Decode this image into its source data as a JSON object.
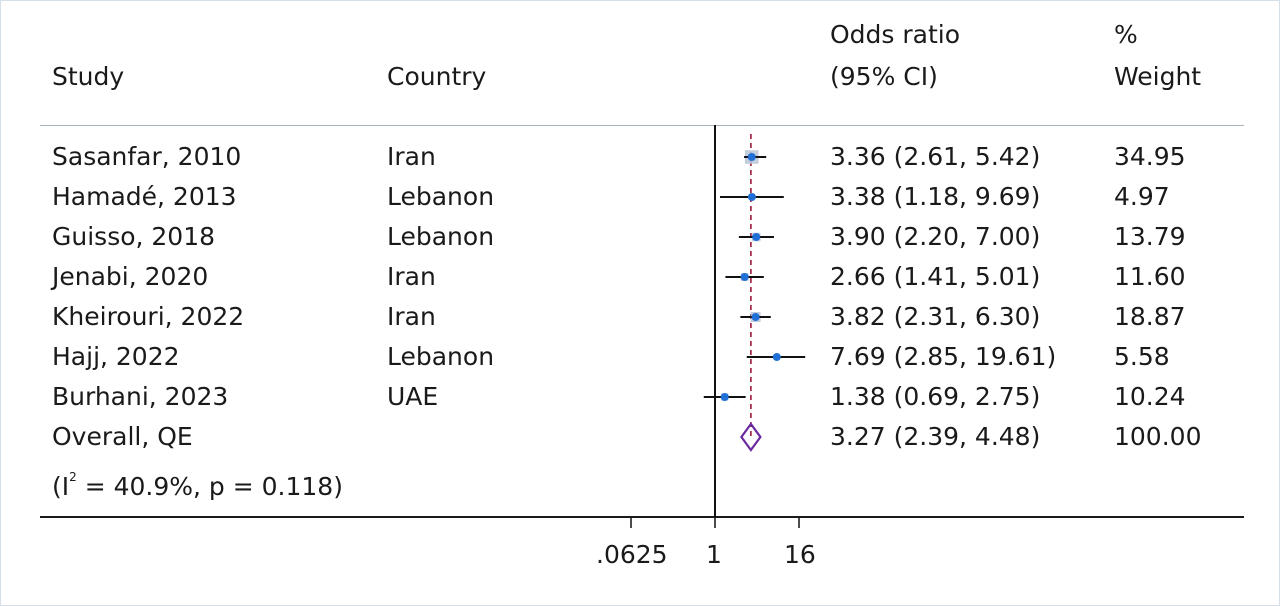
{
  "headers": {
    "study": "Study",
    "country": "Country",
    "or_line1": "Odds ratio",
    "or_line2": "(95% CI)",
    "weight_line1": "%",
    "weight_line2": "Weight"
  },
  "rows": [
    {
      "study": "Sasanfar, 2010",
      "country": "Iran",
      "ci_text": "3.36 (2.61, 5.42)",
      "weight": "34.95"
    },
    {
      "study": "Hamadé, 2013",
      "country": "Lebanon",
      "ci_text": "3.38 (1.18, 9.69)",
      "weight": "4.97"
    },
    {
      "study": "Guisso, 2018",
      "country": "Lebanon",
      "ci_text": "3.90 (2.20, 7.00)",
      "weight": "13.79"
    },
    {
      "study": "Jenabi, 2020",
      "country": "Iran",
      "ci_text": "2.66 (1.41, 5.01)",
      "weight": "11.60"
    },
    {
      "study": "Kheirouri, 2022",
      "country": "Iran",
      "ci_text": "3.82 (2.31, 6.30)",
      "weight": "18.87"
    },
    {
      "study": "Hajj, 2022",
      "country": "Lebanon",
      "ci_text": "7.69 (2.85, 19.61)",
      "weight": "5.58"
    },
    {
      "study": "Burhani, 2023",
      "country": "UAE",
      "ci_text": "1.38 (0.69, 2.75)",
      "weight": "10.24"
    }
  ],
  "overall": {
    "label": "Overall, QE",
    "het_prefix": "(I",
    "het_sup": "2",
    "het_rest": " = 40.9%, p = 0.118)",
    "ci_text": "3.27 (2.39, 4.48)",
    "weight": "100.00"
  },
  "axis_ticks": [
    ".0625",
    "1",
    "16"
  ],
  "colors": {
    "marker": "#1f6fd6",
    "ci_line": "#111111",
    "diamond": "#6a2aa0",
    "overall_line": "#9a1a3a",
    "weight_box": "#b8c4d6"
  },
  "chart_data": {
    "type": "forest",
    "x_scale": "log",
    "xlim": [
      0.0625,
      16
    ],
    "x_ticks": [
      0.0625,
      1,
      16
    ],
    "reference_line": 1,
    "studies": [
      {
        "study": "Sasanfar, 2010",
        "or": 3.36,
        "lower": 2.61,
        "upper": 5.42,
        "weight": 34.95
      },
      {
        "study": "Hamadé, 2013",
        "or": 3.38,
        "lower": 1.18,
        "upper": 9.69,
        "weight": 4.97
      },
      {
        "study": "Guisso, 2018",
        "or": 3.9,
        "lower": 2.2,
        "upper": 7.0,
        "weight": 13.79
      },
      {
        "study": "Jenabi, 2020",
        "or": 2.66,
        "lower": 1.41,
        "upper": 5.01,
        "weight": 11.6
      },
      {
        "study": "Kheirouri, 2022",
        "or": 3.82,
        "lower": 2.31,
        "upper": 6.3,
        "weight": 18.87
      },
      {
        "study": "Hajj, 2022",
        "or": 7.69,
        "lower": 2.85,
        "upper": 19.61,
        "weight": 5.58
      },
      {
        "study": "Burhani, 2023",
        "or": 1.38,
        "lower": 0.69,
        "upper": 2.75,
        "weight": 10.24
      }
    ],
    "overall": {
      "or": 3.27,
      "lower": 2.39,
      "upper": 4.48,
      "weight": 100.0,
      "i2": 40.9,
      "p": 0.118
    }
  }
}
